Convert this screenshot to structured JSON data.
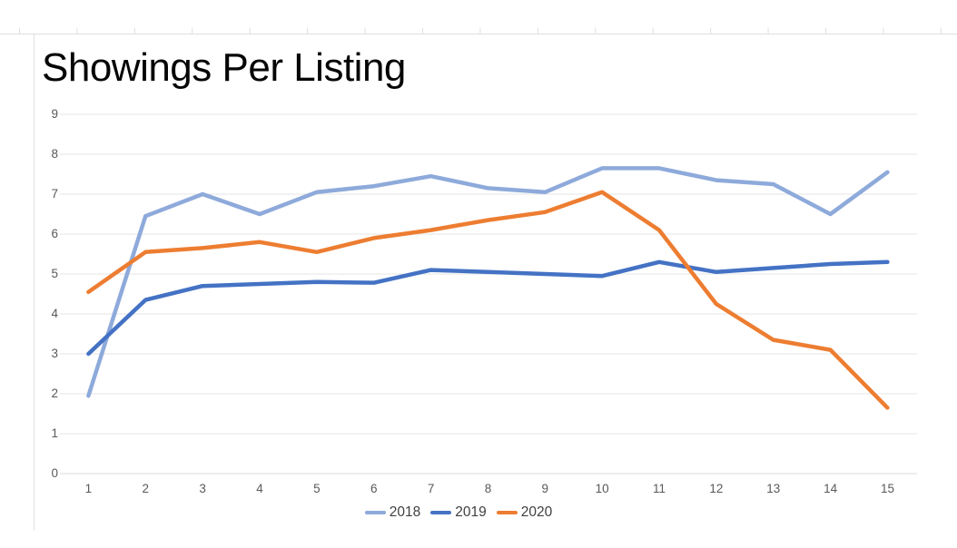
{
  "chart_data": {
    "type": "line",
    "title": "Showings Per Listing",
    "xticks": [
      "1",
      "2",
      "3",
      "4",
      "5",
      "6",
      "7",
      "8",
      "9",
      "10",
      "11",
      "12",
      "13",
      "14",
      "15"
    ],
    "yticks": [
      "9",
      "8",
      "7",
      "6",
      "5",
      "4",
      "3",
      "2",
      "1",
      "0"
    ],
    "ylim": [
      0,
      9
    ],
    "xlabel": "",
    "ylabel": "",
    "grid": true,
    "legend_position": "bottom",
    "series": [
      {
        "name": "2018",
        "color": "#8EAADB",
        "values": [
          1.95,
          6.45,
          7.0,
          6.5,
          7.05,
          7.2,
          7.45,
          7.15,
          7.05,
          7.65,
          7.65,
          7.35,
          7.25,
          6.5,
          7.55
        ]
      },
      {
        "name": "2019",
        "color": "#4472C4",
        "values": [
          3.0,
          4.35,
          4.7,
          4.75,
          4.8,
          4.78,
          5.1,
          5.05,
          5.0,
          4.95,
          5.3,
          5.05,
          5.15,
          5.25,
          5.3
        ]
      },
      {
        "name": "2020",
        "color": "#ED7D31",
        "values": [
          4.55,
          5.55,
          5.65,
          5.8,
          5.55,
          5.9,
          6.1,
          6.35,
          6.55,
          7.05,
          6.1,
          4.25,
          3.35,
          3.1,
          1.65
        ]
      }
    ],
    "colors": {
      "gridline": "#e4e4e4",
      "axis_line": "#d9d9d9",
      "frame_border": "#e0e0e0",
      "tick_text": "#595959",
      "title_text": "#060606"
    }
  }
}
